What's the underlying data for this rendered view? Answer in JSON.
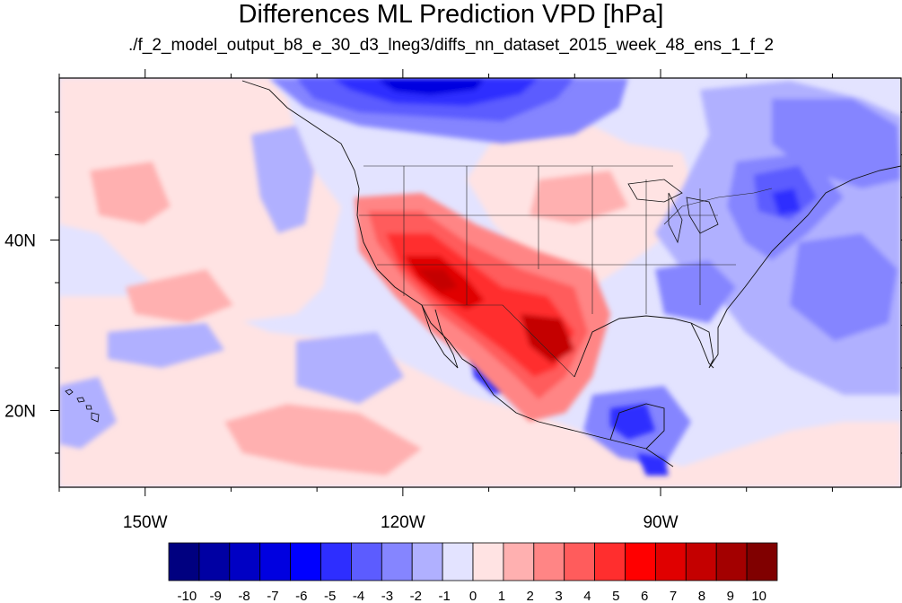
{
  "title": "Differences ML Prediction VPD [hPa]",
  "subtitle": "./f_2_model_output_b8_e_30_d3_lneg3/diffs_nn_dataset_2015_week_48_ens_1_f_2",
  "map": {
    "lon_range": [
      -160,
      -62
    ],
    "lat_range": [
      11,
      59
    ],
    "x_ticks": [
      {
        "value": -150,
        "label": "150W"
      },
      {
        "value": -120,
        "label": "120W"
      },
      {
        "value": -90,
        "label": "90W"
      }
    ],
    "y_ticks": [
      {
        "value": 40,
        "label": "40N"
      },
      {
        "value": 20,
        "label": "20N"
      }
    ]
  },
  "colorbar": {
    "labels": [
      "-10",
      "-9",
      "-8",
      "-7",
      "-6",
      "-5",
      "-4",
      "-3",
      "-2",
      "-1",
      "0",
      "1",
      "2",
      "3",
      "4",
      "5",
      "6",
      "7",
      "8",
      "9",
      "10"
    ],
    "colors": [
      "#000080",
      "#0000a3",
      "#0000c4",
      "#0000e0",
      "#0000ff",
      "#2e2eff",
      "#5c5cff",
      "#8585ff",
      "#b0b0ff",
      "#e3e3ff",
      "#ffe3e3",
      "#ffb0b0",
      "#ff8585",
      "#ff5c5c",
      "#ff2e2e",
      "#ff0000",
      "#e00000",
      "#c40000",
      "#a30000",
      "#800000"
    ]
  }
}
